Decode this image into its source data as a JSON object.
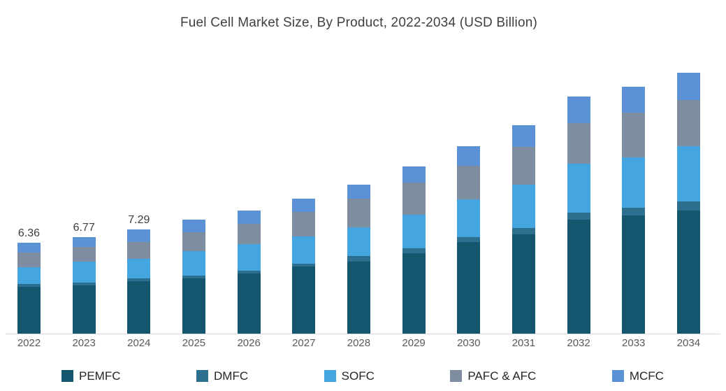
{
  "title": "Fuel Cell Market Size, By Product, 2022-2034 (USD Billion)",
  "chart_data": {
    "type": "bar",
    "stacked": true,
    "title": "Fuel Cell Market Size, By Product, 2022-2034 (USD Billion)",
    "xlabel": "",
    "ylabel": "USD Billion",
    "ylim": [
      0,
      20
    ],
    "grid": false,
    "legend_position": "bottom",
    "categories": [
      "2022",
      "2023",
      "2024",
      "2025",
      "2026",
      "2027",
      "2028",
      "2029",
      "2030",
      "2031",
      "2032",
      "2033",
      "2034"
    ],
    "series": [
      {
        "name": "PEMFC",
        "color": "#14566d",
        "values": [
          3.28,
          3.36,
          3.67,
          3.85,
          4.21,
          4.69,
          5.05,
          5.62,
          6.4,
          6.94,
          7.96,
          8.25,
          8.61
        ]
      },
      {
        "name": "DMFC",
        "color": "#2d6f8f",
        "values": [
          0.2,
          0.22,
          0.21,
          0.2,
          0.2,
          0.2,
          0.38,
          0.33,
          0.33,
          0.44,
          0.49,
          0.55,
          0.64
        ]
      },
      {
        "name": "SOFC",
        "color": "#45a5e0",
        "values": [
          1.19,
          1.47,
          1.34,
          1.71,
          1.84,
          1.89,
          2.0,
          2.36,
          2.64,
          3.05,
          3.45,
          3.55,
          3.86
        ]
      },
      {
        "name": "PAFC & AFC",
        "color": "#7f8da0",
        "values": [
          1.01,
          1.03,
          1.19,
          1.35,
          1.42,
          1.74,
          1.99,
          2.28,
          2.38,
          2.61,
          2.82,
          3.1,
          3.24
        ]
      },
      {
        "name": "MCFC",
        "color": "#5b91d5",
        "values": [
          0.68,
          0.69,
          0.88,
          0.85,
          0.94,
          0.93,
          1.01,
          1.08,
          1.37,
          1.52,
          1.87,
          1.84,
          1.91
        ]
      }
    ],
    "totals": [
      6.36,
      6.77,
      7.29,
      7.96,
      8.61,
      9.45,
      10.43,
      11.67,
      13.12,
      14.56,
      16.59,
      17.29,
      18.26
    ],
    "bar_labels": [
      "6.36",
      "6.77",
      "7.29",
      "",
      "",
      "",
      "",
      "",
      "",
      "",
      "",
      "",
      ""
    ]
  },
  "style": {
    "background": "#ffffff",
    "axis_line_color": "#d9d9d9",
    "title_color": "#3f3f3f",
    "tick_label_color": "#595959",
    "data_label_color": "#3d3d3d"
  }
}
